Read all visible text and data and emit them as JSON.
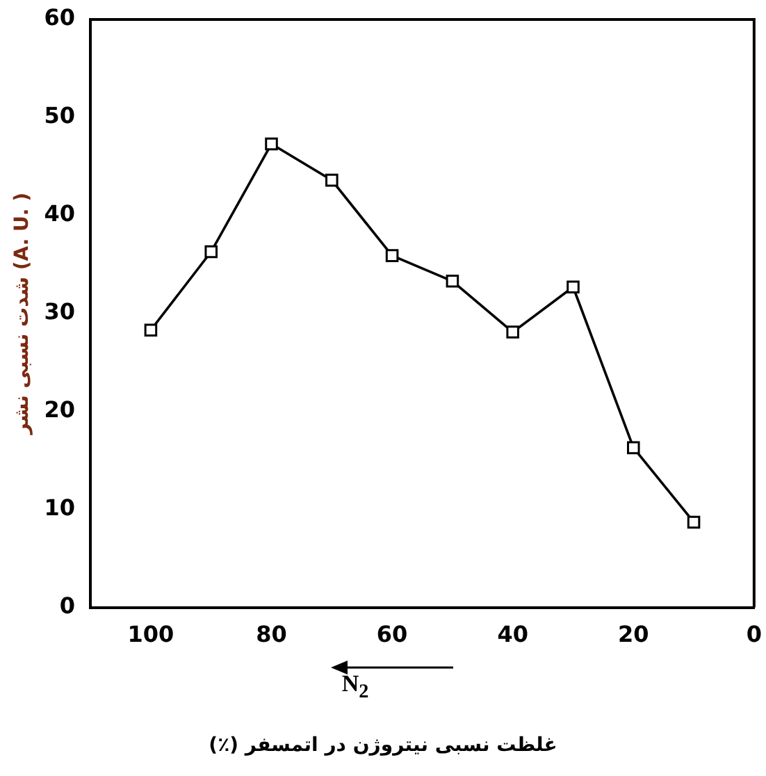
{
  "chart_data": {
    "type": "line",
    "xlabel": "غلظت نسبی نیتروژن در اتمسفر (٪)",
    "ylabel": "شدت نسبی نشر (A. U. )",
    "x": [
      100,
      90,
      80,
      70,
      60,
      50,
      40,
      30,
      20,
      10
    ],
    "series": [
      {
        "color": "#000000",
        "values": [
          28.3,
          36.3,
          47.3,
          43.6,
          35.9,
          33.3,
          28.1,
          32.7,
          16.3,
          8.7
        ]
      }
    ],
    "xlim": [
      110,
      0
    ],
    "xticks": [
      100,
      80,
      60,
      40,
      20,
      0
    ],
    "ylim": [
      0,
      60
    ],
    "yticks": [
      0,
      10,
      20,
      30,
      40,
      50,
      60
    ],
    "marker": "square",
    "line_style": "solid",
    "grid": false,
    "legend": false,
    "annotations": [
      "N$_{2}$"
    ]
  }
}
